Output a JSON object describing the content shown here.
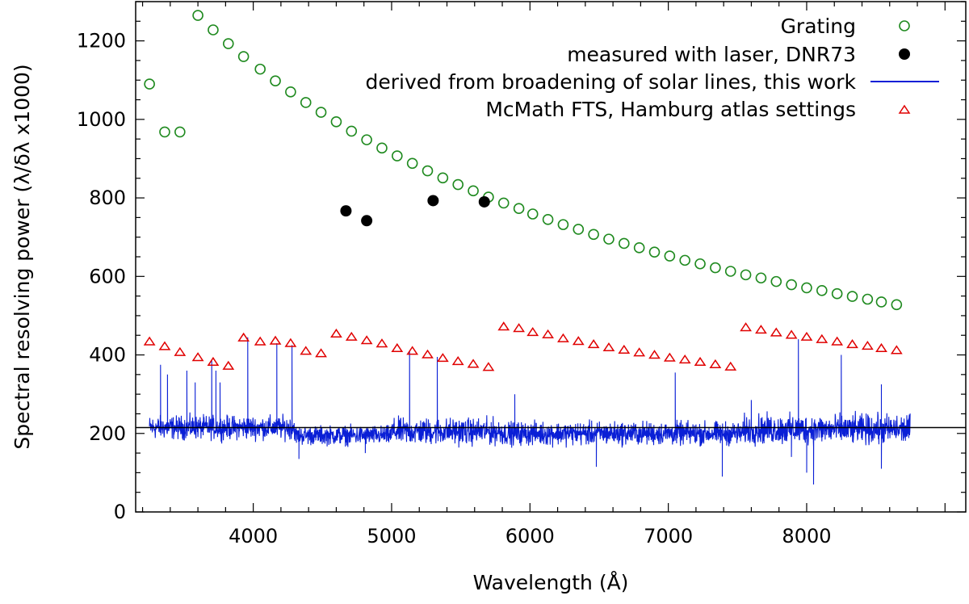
{
  "chart_data": {
    "type": "scatter",
    "xlabel": "Wavelength (Å)",
    "ylabel": "Spectral resolving power (λ/δλ x1000)",
    "xlim": [
      3150,
      9150
    ],
    "ylim": [
      0,
      1300
    ],
    "x_ticks": [
      4000,
      5000,
      6000,
      7000,
      8000
    ],
    "y_ticks": [
      0,
      200,
      400,
      600,
      800,
      1000,
      1200
    ],
    "x_tick_labels": [
      "4000",
      "5000",
      "6000",
      "7000",
      "8000"
    ],
    "y_tick_labels": [
      "0",
      "200",
      "400",
      "600",
      "800",
      "1000",
      "1200"
    ],
    "legend_position": "top-right",
    "grid": false,
    "reference_line": {
      "y": 215,
      "color": "#000000"
    },
    "series": [
      {
        "name": "Grating",
        "marker": "open-circle",
        "color": "#1f8a1f",
        "points": [
          [
            3250,
            1090
          ],
          [
            3360,
            968
          ],
          [
            3470,
            968
          ],
          [
            3600,
            1265
          ],
          [
            3710,
            1228
          ],
          [
            3820,
            1193
          ],
          [
            3930,
            1160
          ],
          [
            4050,
            1128
          ],
          [
            4160,
            1098
          ],
          [
            4270,
            1070
          ],
          [
            4380,
            1043
          ],
          [
            4490,
            1018
          ],
          [
            4600,
            994
          ],
          [
            4710,
            970
          ],
          [
            4820,
            948
          ],
          [
            4930,
            927
          ],
          [
            5040,
            907
          ],
          [
            5150,
            888
          ],
          [
            5260,
            869
          ],
          [
            5370,
            851
          ],
          [
            5480,
            834
          ],
          [
            5590,
            818
          ],
          [
            5700,
            802
          ],
          [
            5810,
            787
          ],
          [
            5920,
            773
          ],
          [
            6020,
            759
          ],
          [
            6130,
            745
          ],
          [
            6240,
            732
          ],
          [
            6350,
            720
          ],
          [
            6460,
            707
          ],
          [
            6570,
            695
          ],
          [
            6680,
            684
          ],
          [
            6790,
            673
          ],
          [
            6900,
            662
          ],
          [
            7010,
            652
          ],
          [
            7120,
            641
          ],
          [
            7230,
            632
          ],
          [
            7340,
            622
          ],
          [
            7450,
            613
          ],
          [
            7560,
            604
          ],
          [
            7670,
            596
          ],
          [
            7780,
            587
          ],
          [
            7890,
            579
          ],
          [
            8000,
            571
          ],
          [
            8110,
            564
          ],
          [
            8220,
            556
          ],
          [
            8330,
            549
          ],
          [
            8440,
            542
          ],
          [
            8540,
            535
          ],
          [
            8650,
            528
          ]
        ]
      },
      {
        "name": "measured with laser, DNR73",
        "marker": "filled-circle",
        "color": "#000000",
        "points": [
          [
            4670,
            767
          ],
          [
            4820,
            742
          ],
          [
            5300,
            793
          ],
          [
            5670,
            790
          ]
        ]
      },
      {
        "name": "derived from broadening of solar lines, this work",
        "marker": "line",
        "color": "#0a1fd6",
        "segments": [
          {
            "x_range": [
              3250,
              4300
            ],
            "base": 215,
            "noise": 22
          },
          {
            "x_range": [
              4300,
              5000
            ],
            "base": 195,
            "noise": 18
          },
          {
            "x_range": [
              5000,
              5800
            ],
            "base": 205,
            "noise": 25
          },
          {
            "x_range": [
              5800,
              7550
            ],
            "base": 200,
            "noise": 22
          },
          {
            "x_range": [
              7550,
              8750
            ],
            "base": 210,
            "noise": 28
          }
        ],
        "spikes": [
          [
            3330,
            375
          ],
          [
            3380,
            350
          ],
          [
            3520,
            360
          ],
          [
            3580,
            330
          ],
          [
            3700,
            385
          ],
          [
            3730,
            360
          ],
          [
            3760,
            330
          ],
          [
            3960,
            445
          ],
          [
            4170,
            430
          ],
          [
            4280,
            425
          ],
          [
            5130,
            410
          ],
          [
            5330,
            395
          ],
          [
            5890,
            300
          ],
          [
            7050,
            355
          ],
          [
            7600,
            285
          ],
          [
            8250,
            400
          ],
          [
            7940,
            440
          ],
          [
            8540,
            325
          ]
        ],
        "dips": [
          [
            4330,
            135
          ],
          [
            4810,
            150
          ],
          [
            6480,
            115
          ],
          [
            7390,
            90
          ],
          [
            8050,
            70
          ],
          [
            8540,
            110
          ],
          [
            8000,
            100
          ],
          [
            7890,
            140
          ]
        ]
      },
      {
        "name": "McMath FTS, Hamburg atlas settings",
        "marker": "open-triangle",
        "color": "#e00000",
        "points": [
          [
            3250,
            434
          ],
          [
            3360,
            422
          ],
          [
            3470,
            407
          ],
          [
            3600,
            394
          ],
          [
            3710,
            382
          ],
          [
            3820,
            372
          ],
          [
            3930,
            444
          ],
          [
            4050,
            434
          ],
          [
            4160,
            436
          ],
          [
            4270,
            430
          ],
          [
            4380,
            410
          ],
          [
            4490,
            404
          ],
          [
            4600,
            454
          ],
          [
            4710,
            446
          ],
          [
            4820,
            437
          ],
          [
            4930,
            429
          ],
          [
            5040,
            417
          ],
          [
            5150,
            410
          ],
          [
            5260,
            401
          ],
          [
            5370,
            392
          ],
          [
            5480,
            384
          ],
          [
            5590,
            377
          ],
          [
            5700,
            369
          ],
          [
            5810,
            472
          ],
          [
            5920,
            468
          ],
          [
            6020,
            458
          ],
          [
            6130,
            452
          ],
          [
            6240,
            442
          ],
          [
            6350,
            435
          ],
          [
            6460,
            427
          ],
          [
            6570,
            419
          ],
          [
            6680,
            413
          ],
          [
            6790,
            406
          ],
          [
            6900,
            400
          ],
          [
            7010,
            393
          ],
          [
            7120,
            388
          ],
          [
            7230,
            382
          ],
          [
            7340,
            376
          ],
          [
            7450,
            370
          ],
          [
            7560,
            470
          ],
          [
            7670,
            464
          ],
          [
            7780,
            457
          ],
          [
            7890,
            451
          ],
          [
            8000,
            446
          ],
          [
            8110,
            440
          ],
          [
            8220,
            434
          ],
          [
            8330,
            427
          ],
          [
            8440,
            423
          ],
          [
            8540,
            417
          ],
          [
            8650,
            412
          ]
        ]
      }
    ]
  }
}
